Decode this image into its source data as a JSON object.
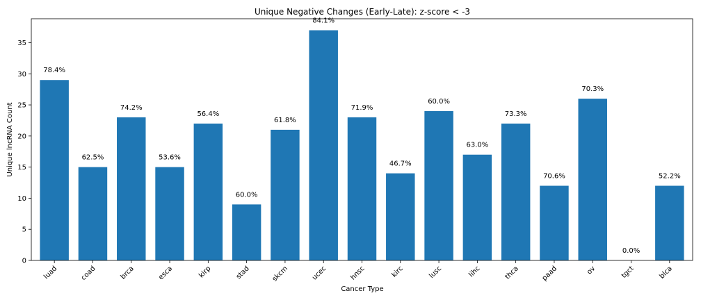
{
  "chart_data": {
    "type": "bar",
    "title": "Unique Negative Changes (Early-Late): z-score < -3",
    "xlabel": "Cancer Type",
    "ylabel": "Unique lncRNA Count",
    "categories": [
      "luad",
      "coad",
      "brca",
      "esca",
      "kirp",
      "stad",
      "skcm",
      "ucec",
      "hnsc",
      "kirc",
      "lusc",
      "lihc",
      "thca",
      "paad",
      "ov",
      "tgct",
      "blca"
    ],
    "values": [
      29,
      15,
      23,
      15,
      22,
      9,
      21,
      37,
      23,
      14,
      24,
      17,
      22,
      12,
      26,
      0,
      12
    ],
    "labels": [
      "78.4%",
      "62.5%",
      "74.2%",
      "53.6%",
      "56.4%",
      "60.0%",
      "61.8%",
      "84.1%",
      "71.9%",
      "46.7%",
      "60.0%",
      "63.0%",
      "73.3%",
      "70.6%",
      "70.3%",
      "0.0%",
      "52.2%"
    ],
    "ylim": [
      0,
      38.85
    ],
    "yticks": [
      0,
      5,
      10,
      15,
      20,
      25,
      30,
      35
    ],
    "bar_color": "#1f77b4",
    "grid": false,
    "legend": "none"
  }
}
